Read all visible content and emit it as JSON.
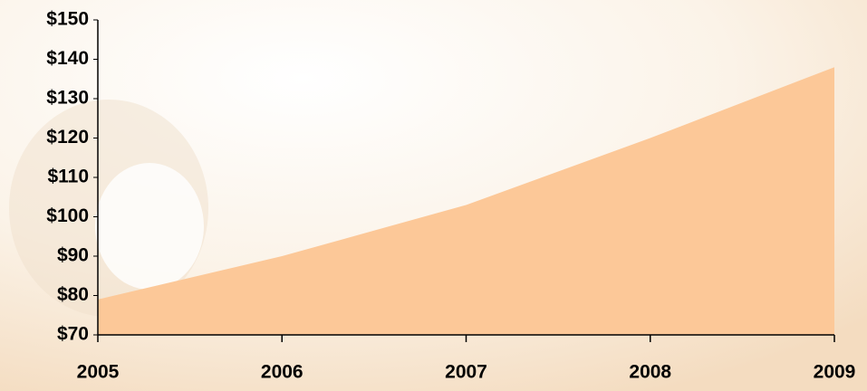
{
  "chart_data": {
    "type": "area",
    "categories": [
      "2005",
      "2006",
      "2007",
      "2008",
      "2009"
    ],
    "values": [
      79,
      90,
      103,
      120,
      138
    ],
    "color": "#fcc898",
    "ylim": [
      70,
      150
    ],
    "yticks": [
      {
        "value": 70,
        "label": "$70"
      },
      {
        "value": 80,
        "label": "$80"
      },
      {
        "value": 90,
        "label": "$90"
      },
      {
        "value": 100,
        "label": "$100"
      },
      {
        "value": 110,
        "label": "$110"
      },
      {
        "value": 120,
        "label": "$120"
      },
      {
        "value": 130,
        "label": "$130"
      },
      {
        "value": 140,
        "label": "$140"
      },
      {
        "value": 150,
        "label": "$150"
      }
    ],
    "grid": false
  }
}
